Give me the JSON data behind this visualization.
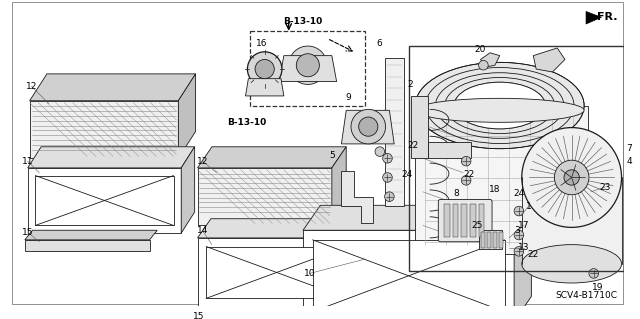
{
  "bg_color": "#ffffff",
  "diagram_code": "SCV4-B1710C",
  "fr_label": "FR.",
  "b13_10_label": "B-13-10",
  "line_color": "#1a1a1a",
  "label_fontsize": 6.5,
  "label_color": "#000000",
  "hatch_color": "#888888",
  "gray_light": "#e8e8e8",
  "gray_mid": "#cccccc",
  "gray_dark": "#aaaaaa"
}
